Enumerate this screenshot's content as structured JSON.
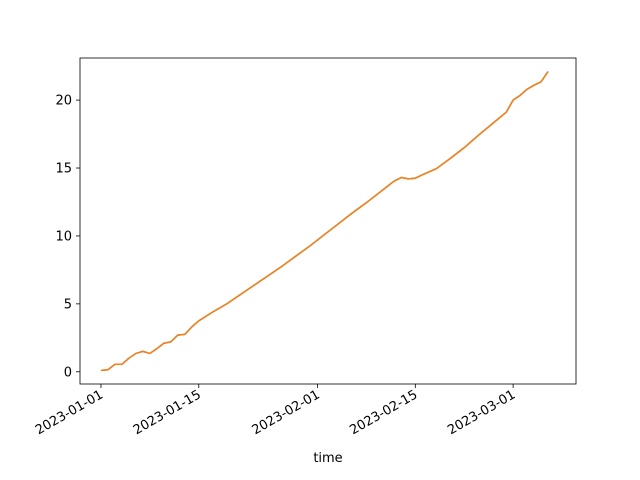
{
  "chart_data": {
    "type": "line",
    "title": "",
    "xlabel": "time",
    "ylabel": "",
    "grid": false,
    "legend": "none",
    "x_type": "date",
    "xlim": [
      "2022-12-29",
      "2023-03-10"
    ],
    "ylim": [
      -0.9,
      23.1
    ],
    "x_ticks": [
      "2023-01-01",
      "2023-01-15",
      "2023-02-01",
      "2023-02-15",
      "2023-03-01"
    ],
    "x_tick_labels": [
      "2023-01-01",
      "2023-01-15",
      "2023-02-01",
      "2023-02-15",
      "2023-03-01"
    ],
    "y_ticks": [
      0,
      5,
      10,
      15,
      20
    ],
    "y_tick_labels": [
      "0",
      "5",
      "10",
      "15",
      "20"
    ],
    "series": [
      {
        "color": "#1f77b4",
        "x": [
          "2023-01-01",
          "2023-01-02",
          "2023-01-03",
          "2023-01-04",
          "2023-01-05",
          "2023-01-06",
          "2023-01-07",
          "2023-01-08",
          "2023-01-09",
          "2023-01-10",
          "2023-01-11",
          "2023-01-12",
          "2023-01-13",
          "2023-01-14",
          "2023-01-15",
          "2023-01-17",
          "2023-01-19",
          "2023-01-21",
          "2023-01-23",
          "2023-01-25",
          "2023-01-27",
          "2023-01-29",
          "2023-01-31",
          "2023-02-02",
          "2023-02-04",
          "2023-02-06",
          "2023-02-08",
          "2023-02-10",
          "2023-02-11",
          "2023-02-12",
          "2023-02-13",
          "2023-02-14",
          "2023-02-15",
          "2023-02-16",
          "2023-02-18",
          "2023-02-20",
          "2023-02-22",
          "2023-02-24",
          "2023-02-26",
          "2023-02-28",
          "2023-03-01",
          "2023-03-02",
          "2023-03-03",
          "2023-03-04",
          "2023-03-05",
          "2023-03-06"
        ],
        "y": [
          0.1,
          0.15,
          0.55,
          0.55,
          1.0,
          1.35,
          1.5,
          1.35,
          1.7,
          2.1,
          2.2,
          2.7,
          2.75,
          3.3,
          3.75,
          4.4,
          5.0,
          5.7,
          6.4,
          7.1,
          7.8,
          8.55,
          9.3,
          10.1,
          10.9,
          11.7,
          12.45,
          13.25,
          13.65,
          14.05,
          14.3,
          14.2,
          14.25,
          14.5,
          14.95,
          15.7,
          16.5,
          17.4,
          18.25,
          19.1,
          20.0,
          20.35,
          20.8,
          21.1,
          21.35,
          22.1
        ]
      },
      {
        "color": "#ff7f0e",
        "x": [
          "2023-01-01",
          "2023-01-02",
          "2023-01-03",
          "2023-01-04",
          "2023-01-05",
          "2023-01-06",
          "2023-01-07",
          "2023-01-08",
          "2023-01-09",
          "2023-01-10",
          "2023-01-11",
          "2023-01-12",
          "2023-01-13",
          "2023-01-14",
          "2023-01-15",
          "2023-01-17",
          "2023-01-19",
          "2023-01-21",
          "2023-01-23",
          "2023-01-25",
          "2023-01-27",
          "2023-01-29",
          "2023-01-31",
          "2023-02-02",
          "2023-02-04",
          "2023-02-06",
          "2023-02-08",
          "2023-02-10",
          "2023-02-11",
          "2023-02-12",
          "2023-02-13",
          "2023-02-14",
          "2023-02-15",
          "2023-02-16",
          "2023-02-18",
          "2023-02-20",
          "2023-02-22",
          "2023-02-24",
          "2023-02-26",
          "2023-02-28",
          "2023-03-01",
          "2023-03-02",
          "2023-03-03",
          "2023-03-04",
          "2023-03-05",
          "2023-03-06"
        ],
        "y": [
          0.1,
          0.15,
          0.55,
          0.55,
          1.0,
          1.35,
          1.5,
          1.35,
          1.7,
          2.1,
          2.2,
          2.7,
          2.75,
          3.3,
          3.75,
          4.4,
          5.0,
          5.7,
          6.4,
          7.1,
          7.8,
          8.55,
          9.3,
          10.1,
          10.9,
          11.7,
          12.45,
          13.25,
          13.65,
          14.05,
          14.3,
          14.2,
          14.25,
          14.5,
          14.95,
          15.7,
          16.5,
          17.4,
          18.25,
          19.1,
          20.0,
          20.35,
          20.8,
          21.1,
          21.35,
          22.1
        ]
      }
    ]
  }
}
